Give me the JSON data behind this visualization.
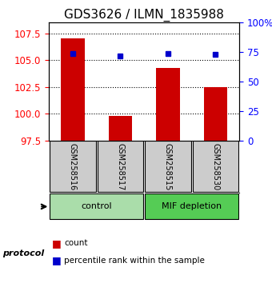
{
  "title": "GDS3626 / ILMN_1835988",
  "samples": [
    "GSM258516",
    "GSM258517",
    "GSM258515",
    "GSM258530"
  ],
  "bar_values": [
    107.0,
    99.8,
    104.3,
    102.5
  ],
  "bar_baseline": 97.5,
  "percentile_values": [
    74.0,
    71.5,
    74.0,
    73.0
  ],
  "ylim_left": [
    97.5,
    108.5
  ],
  "ylim_right": [
    0,
    100
  ],
  "yticks_left": [
    97.5,
    100.0,
    102.5,
    105.0,
    107.5
  ],
  "yticks_right": [
    0,
    25,
    50,
    75,
    100
  ],
  "ytick_right_labels": [
    "0",
    "25",
    "50",
    "75",
    "100%"
  ],
  "bar_color": "#cc0000",
  "dot_color": "#0000cc",
  "grid_color": "#000000",
  "groups": [
    {
      "label": "control",
      "samples": [
        "GSM258516",
        "GSM258517"
      ],
      "color": "#aaddaa"
    },
    {
      "label": "MIF depletion",
      "samples": [
        "GSM258515",
        "GSM258530"
      ],
      "color": "#55cc55"
    }
  ],
  "protocol_label": "protocol",
  "legend_count": "count",
  "legend_percentile": "percentile rank within the sample",
  "bg_color": "#ffffff",
  "sample_box_color": "#cccccc",
  "title_fontsize": 11,
  "axis_fontsize": 8.5,
  "label_fontsize": 8
}
